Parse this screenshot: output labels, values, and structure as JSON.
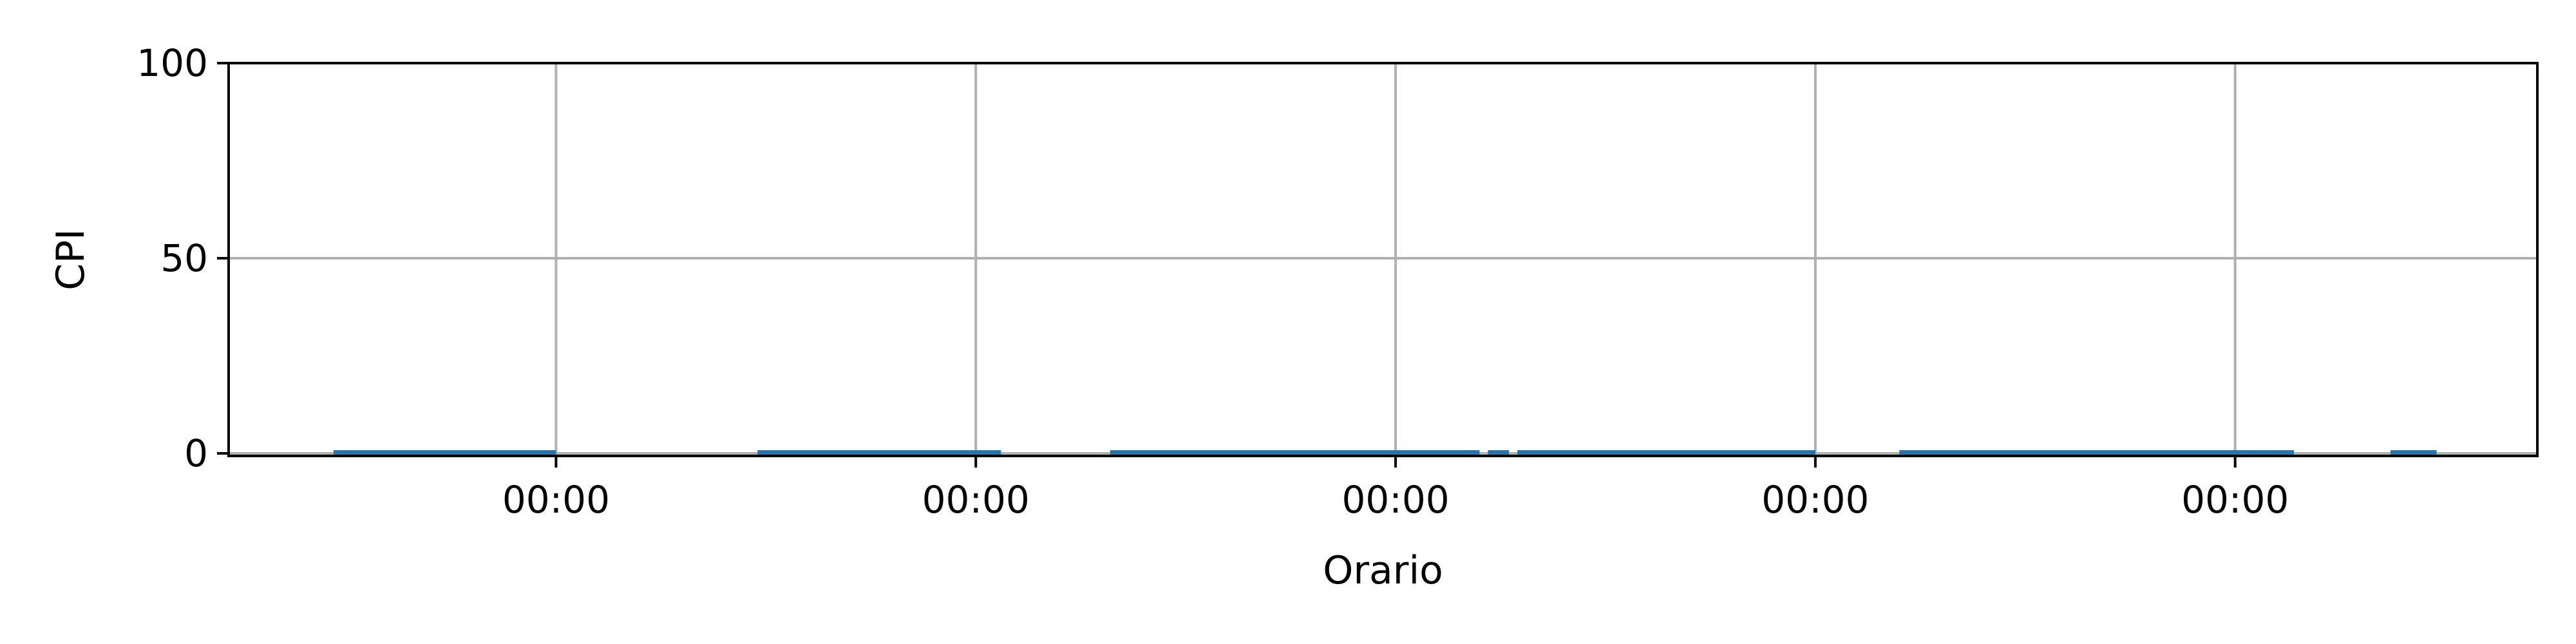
{
  "chart_data": {
    "type": "line",
    "xlabel": "Orario",
    "ylabel": "CPI",
    "ylim": [
      0,
      100
    ],
    "yticks": [
      0,
      50,
      100
    ],
    "xlim": [
      0,
      5.5
    ],
    "xticks": [
      {
        "value": 0.78,
        "label": "00:00"
      },
      {
        "value": 1.78,
        "label": "00:00"
      },
      {
        "value": 2.78,
        "label": "00:00"
      },
      {
        "value": 3.78,
        "label": "00:00"
      },
      {
        "value": 4.78,
        "label": "00:00"
      }
    ],
    "grid": true,
    "line_color": "#1f77b4",
    "series": [
      {
        "segments": [
          {
            "x": [
              0.25,
              0.78
            ],
            "y": [
              0,
              0
            ]
          },
          {
            "x": [
              1.26,
              1.84
            ],
            "y": [
              0,
              0
            ]
          },
          {
            "x": [
              2.1,
              2.98
            ],
            "y": [
              0,
              0
            ]
          },
          {
            "x": [
              3.0,
              3.05
            ],
            "y": [
              0,
              0
            ]
          },
          {
            "x": [
              3.07,
              3.78
            ],
            "y": [
              0,
              0
            ]
          },
          {
            "x": [
              3.98,
              4.92
            ],
            "y": [
              0,
              0
            ]
          },
          {
            "x": [
              5.15,
              5.26
            ],
            "y": [
              0,
              0
            ]
          }
        ]
      }
    ]
  }
}
